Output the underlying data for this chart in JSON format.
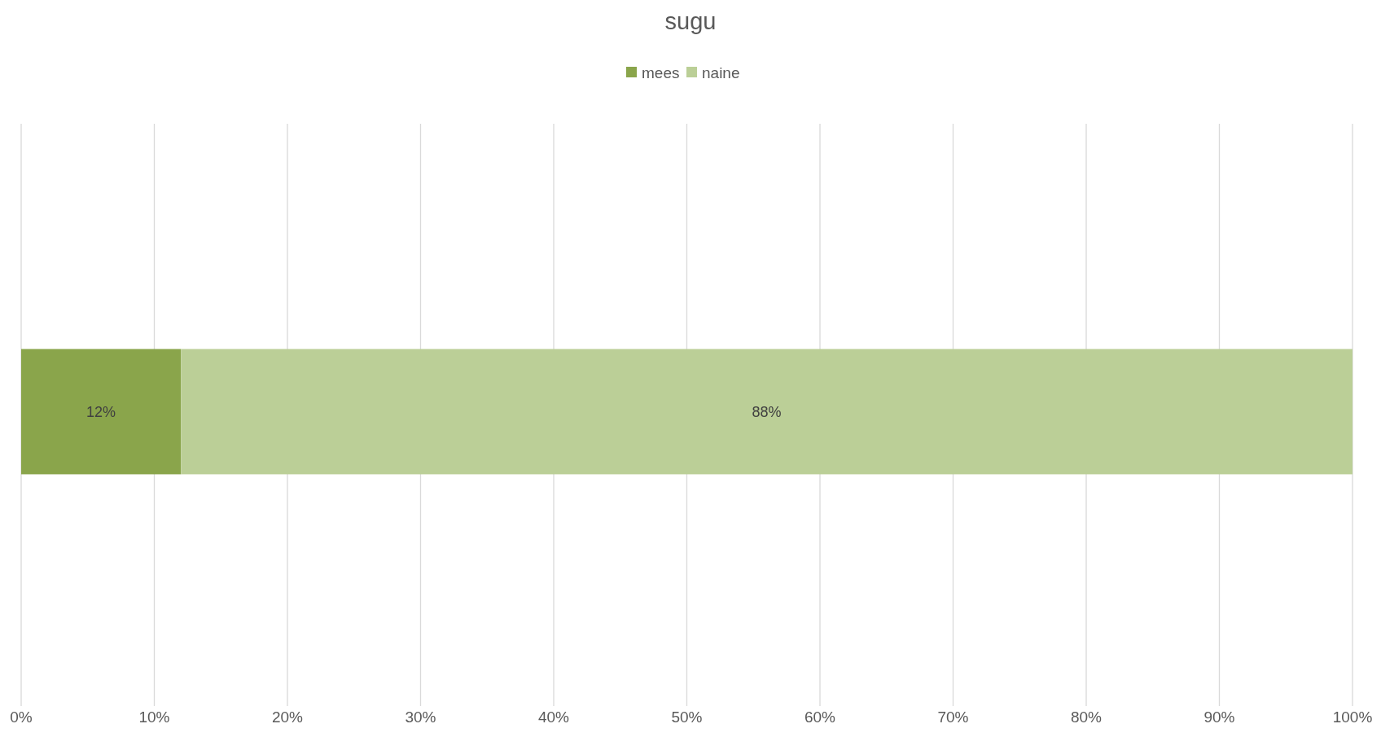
{
  "chart_data": {
    "type": "bar",
    "title": "sugu",
    "orientation": "horizontal",
    "stacked": true,
    "categories": [
      null
    ],
    "series": [
      {
        "name": "mees",
        "color": "#8aa54b",
        "values": [
          12
        ],
        "value_labels": [
          "12%"
        ]
      },
      {
        "name": "naine",
        "color": "#bbcf97",
        "values": [
          88
        ],
        "value_labels": [
          "88%"
        ]
      }
    ],
    "xlim": [
      0,
      100
    ],
    "xticks": [
      {
        "value": 0,
        "label": "0%"
      },
      {
        "value": 10,
        "label": "10%"
      },
      {
        "value": 20,
        "label": "20%"
      },
      {
        "value": 30,
        "label": "30%"
      },
      {
        "value": 40,
        "label": "40%"
      },
      {
        "value": 50,
        "label": "50%"
      },
      {
        "value": 60,
        "label": "60%"
      },
      {
        "value": 70,
        "label": "70%"
      },
      {
        "value": 80,
        "label": "80%"
      },
      {
        "value": 90,
        "label": "90%"
      },
      {
        "value": 100,
        "label": "100%"
      }
    ],
    "grid": "x",
    "legend": "top"
  }
}
